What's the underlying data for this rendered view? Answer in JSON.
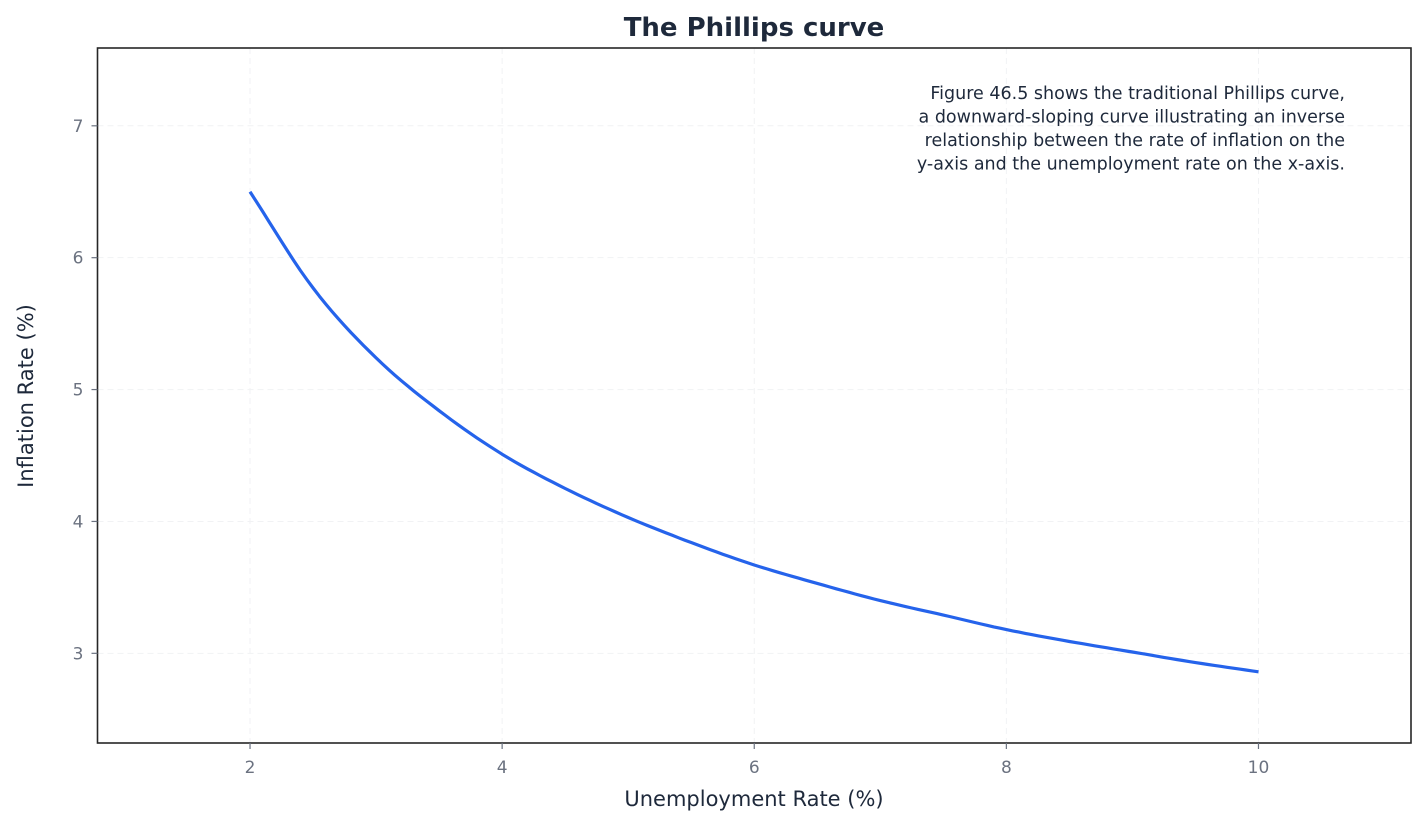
{
  "chart_data": {
    "type": "line",
    "title": "The Phillips curve",
    "xlabel": "Unemployment Rate (%)",
    "ylabel": "Inflation Rate (%)",
    "xlim": [
      0.79,
      11.21
    ],
    "ylim": [
      2.32,
      7.59
    ],
    "xticks": [
      2,
      4,
      6,
      8,
      10
    ],
    "yticks": [
      3,
      4,
      5,
      6,
      7
    ],
    "grid": true,
    "legend": null,
    "annotation": [
      "Figure 46.5 shows the traditional Phillips curve,",
      "a downward-sloping curve illustrating an inverse",
      "relationship between the rate of inflation on the",
      "y-axis and the unemployment rate on the x-axis."
    ],
    "series": [
      {
        "name": "Phillips curve",
        "color": "#2563eb",
        "x": [
          2,
          2.5,
          3,
          3.5,
          4,
          4.5,
          5,
          5.5,
          6,
          6.5,
          7,
          7.5,
          8,
          8.5,
          9,
          9.5,
          10
        ],
        "y": [
          6.5,
          5.77,
          5.24,
          4.84,
          4.51,
          4.25,
          4.03,
          3.84,
          3.67,
          3.53,
          3.4,
          3.29,
          3.18,
          3.09,
          3.01,
          2.93,
          2.86
        ]
      }
    ]
  },
  "colors": {
    "line": "#2563eb",
    "title": "#1e293b",
    "tick_labels": "#6b7280",
    "frame": "#262626",
    "grid": "#f1f2f4"
  }
}
